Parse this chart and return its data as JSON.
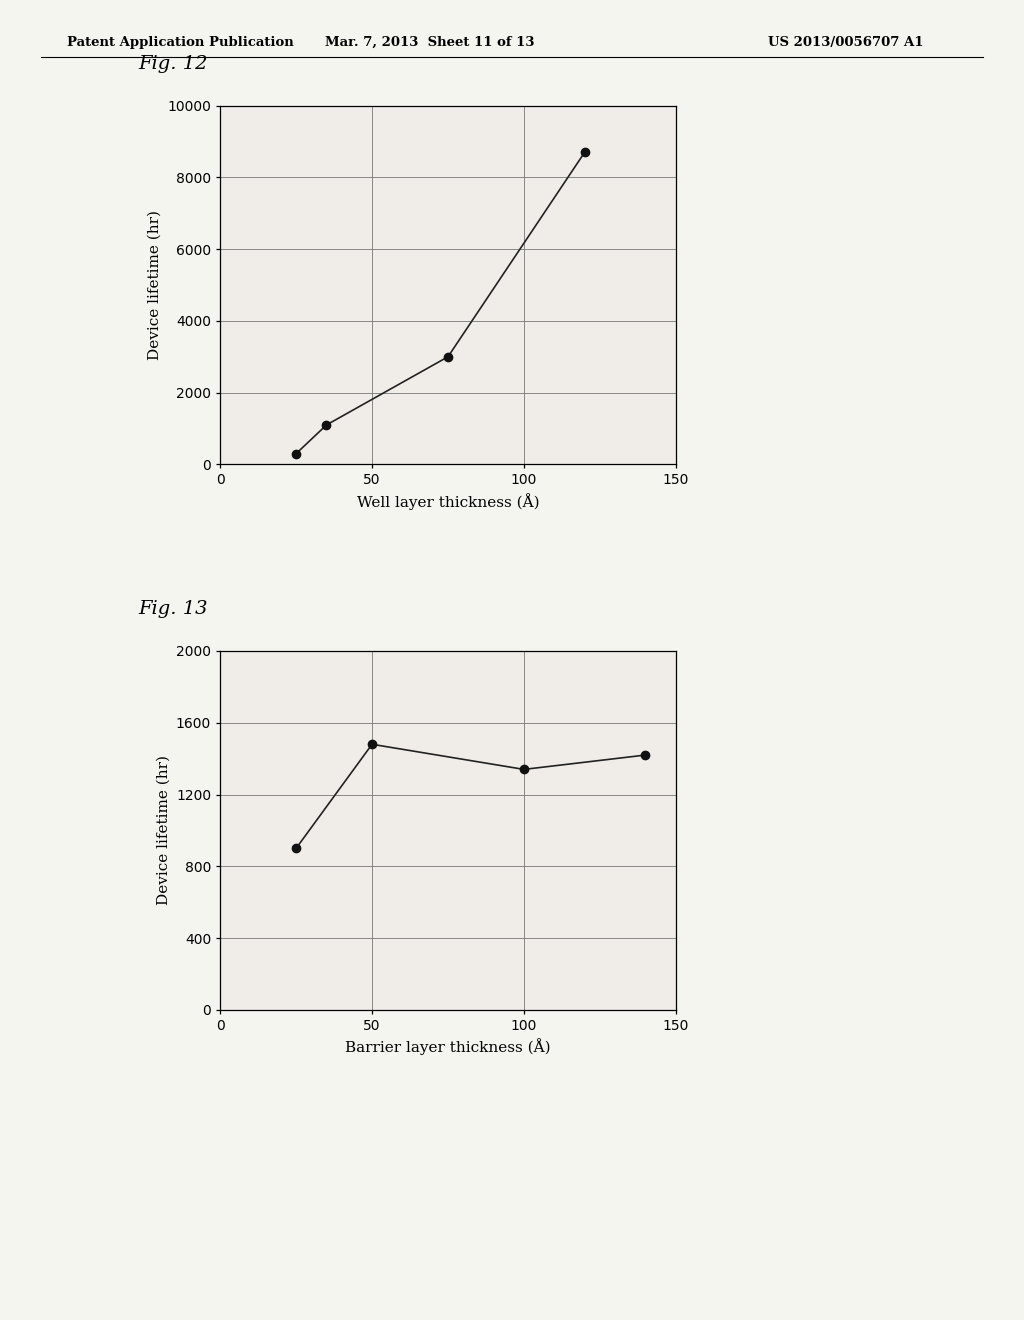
{
  "header_left": "Patent Application Publication",
  "header_mid": "Mar. 7, 2013  Sheet 11 of 13",
  "header_right": "US 2013/0056707 A1",
  "fig12": {
    "label": "Fig. 12",
    "x": [
      25,
      35,
      75,
      120
    ],
    "y": [
      300,
      1100,
      3000,
      8700
    ],
    "xlabel": "Well layer thickness (Å)",
    "ylabel": "Device lifetime (hr)",
    "xlim": [
      0,
      150
    ],
    "ylim": [
      0,
      10000
    ],
    "xticks": [
      0,
      50,
      100,
      150
    ],
    "yticks": [
      0,
      2000,
      4000,
      6000,
      8000,
      10000
    ]
  },
  "fig13": {
    "label": "Fig. 13",
    "x": [
      25,
      50,
      100,
      140
    ],
    "y": [
      900,
      1480,
      1340,
      1420
    ],
    "xlabel": "Barrier layer thickness (Å)",
    "ylabel": "Device lifetime (hr)",
    "xlim": [
      0,
      150
    ],
    "ylim": [
      0,
      2000
    ],
    "xticks": [
      0,
      50,
      100,
      150
    ],
    "yticks": [
      0,
      400,
      800,
      1200,
      1600,
      2000
    ]
  },
  "background_color": "#f5f5f0",
  "plot_bg": "#f0ede8",
  "line_color": "#222222",
  "marker_color": "#111111",
  "marker_size": 6,
  "line_width": 1.2,
  "grid_color": "#777777",
  "grid_linewidth": 0.6,
  "axis_linewidth": 0.9,
  "tick_labelsize": 10,
  "axis_labelsize": 11,
  "fig_label_fontsize": 14,
  "header_fontsize": 9.5
}
